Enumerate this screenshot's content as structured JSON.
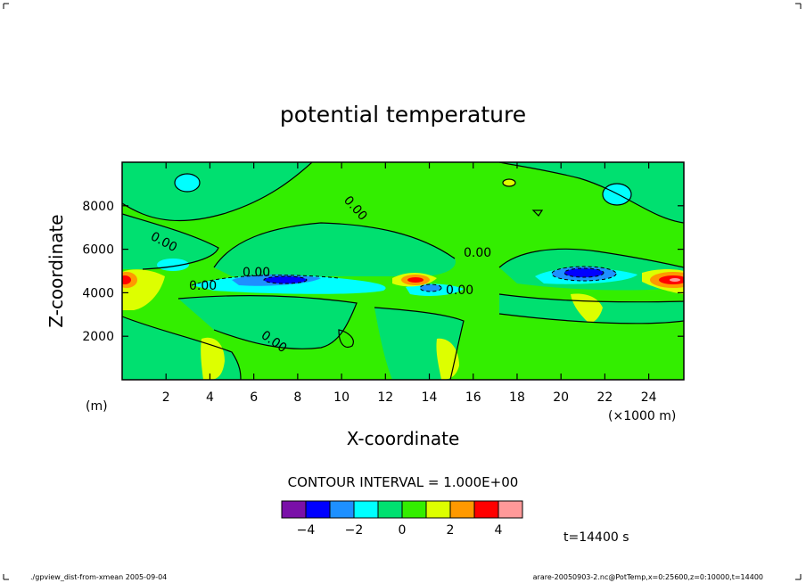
{
  "chart_data": {
    "type": "heatmap",
    "title": "potential temperature",
    "xlabel": "X-coordinate",
    "ylabel": "Z-coordinate",
    "x_unit": "(×1000 m)",
    "y_unit": "(m)",
    "xlim": [
      0,
      25.6
    ],
    "ylim": [
      0,
      10000
    ],
    "x_ticks": [
      "2",
      "4",
      "6",
      "8",
      "10",
      "12",
      "14",
      "16",
      "18",
      "20",
      "22",
      "24"
    ],
    "y_ticks": [
      "2000",
      "4000",
      "6000",
      "8000"
    ],
    "contour_interval_text": "CONTOUR INTERVAL = 1.000E+00",
    "contour_label": "0.00",
    "legend": {
      "levels": [
        -5,
        -4,
        -3,
        -2,
        -1,
        0,
        1,
        2,
        3,
        4,
        5
      ],
      "tick_labels": [
        "−4",
        "−2",
        "0",
        "2",
        "4"
      ],
      "tick_values": [
        -4,
        -2,
        0,
        2,
        4
      ],
      "colors": [
        "#7a10a8",
        "#0000ff",
        "#1e90ff",
        "#00ffff",
        "#00e070",
        "#33ee00",
        "#ddff00",
        "#ff9900",
        "#ff0000",
        "#ff9999"
      ]
    },
    "features": [
      {
        "name": "warm-core-left",
        "x": 0.2,
        "z": 4600,
        "value": 4
      },
      {
        "name": "cold-core-left",
        "x": 7.5,
        "z": 4550,
        "value": -4
      },
      {
        "name": "warm-core-center",
        "x": 13.2,
        "z": 4600,
        "value": 3
      },
      {
        "name": "cold-core-center",
        "x": 14.2,
        "z": 4200,
        "value": -2
      },
      {
        "name": "cold-core-right",
        "x": 20.9,
        "z": 4800,
        "value": -4
      },
      {
        "name": "warm-core-right",
        "x": 24.8,
        "z": 4600,
        "value": 4
      },
      {
        "name": "cool-patch-upper-left",
        "x": 3.0,
        "z": 8900,
        "value": -1
      },
      {
        "name": "cool-patch-upper-right",
        "x": 22.5,
        "z": 8400,
        "value": -1
      }
    ]
  },
  "time_label": "t=14400 s",
  "footer": {
    "left": "./gpview_dist-from-xmean  2005-09-04",
    "right": "arare-20050903-2.nc@PotTemp,x=0:25600,z=0:10000,t=14400"
  },
  "colors": {
    "background": "#33ee00",
    "frame": "#000000"
  }
}
